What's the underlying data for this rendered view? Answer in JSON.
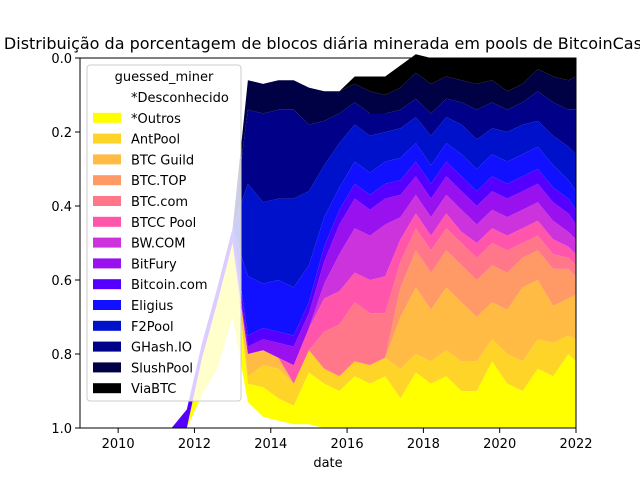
{
  "chart_data": {
    "type": "area",
    "title": "Distribuição da porcentagem de blocos diária minerada em pools de BitcoinCash",
    "xlabel": "date",
    "ylabel": "",
    "xlim": [
      2009.0,
      2022.0
    ],
    "ylim": [
      1.0,
      0.0
    ],
    "y_inverted": true,
    "grid": false,
    "x_ticks": [
      "2010",
      "2012",
      "2014",
      "2016",
      "2018",
      "2020",
      "2022"
    ],
    "y_ticks": [
      "0.0",
      "0.2",
      "0.4",
      "0.6",
      "0.8",
      "1.0"
    ],
    "legend": {
      "title": "guessed_miner",
      "placement": "upper-left"
    },
    "x": [
      2009.0,
      2011.4,
      2011.8,
      2012.2,
      2012.6,
      2013.0,
      2013.4,
      2013.8,
      2014.2,
      2014.6,
      2015.0,
      2015.4,
      2015.8,
      2016.2,
      2016.6,
      2017.0,
      2017.4,
      2017.8,
      2018.2,
      2018.6,
      2019.0,
      2019.4,
      2019.8,
      2020.2,
      2020.6,
      2021.0,
      2021.4,
      2021.8,
      2022.0
    ],
    "series": [
      {
        "name": "*Desconhecido",
        "color": "#ffffff",
        "values": [
          0,
          0,
          0,
          0.09,
          0.16,
          0.3,
          0.07,
          0.03,
          0.02,
          0.01,
          0.01,
          0,
          0,
          0,
          0,
          0,
          0,
          0,
          0,
          0,
          0,
          0,
          0,
          0,
          0,
          0,
          0,
          0,
          0
        ]
      },
      {
        "name": "*Outros",
        "color": "#ffff00",
        "values": [
          0,
          0,
          0,
          0.1,
          0.18,
          0.2,
          0.05,
          0.08,
          0.06,
          0.05,
          0.14,
          0.12,
          0.1,
          0.14,
          0.12,
          0.14,
          0.08,
          0.15,
          0.12,
          0.14,
          0.1,
          0.1,
          0.18,
          0.12,
          0.1,
          0.16,
          0.14,
          0.2,
          0.18
        ]
      },
      {
        "name": "AntPool",
        "color": "#ffd429",
        "values": [
          0,
          0,
          0,
          0,
          0,
          0,
          0.02,
          0.06,
          0.08,
          0.06,
          0.06,
          0.04,
          0.04,
          0.04,
          0.05,
          0.05,
          0.08,
          0.05,
          0.06,
          0.07,
          0.08,
          0.08,
          0.06,
          0.08,
          0.08,
          0.08,
          0.09,
          0.05,
          0.06
        ]
      },
      {
        "name": "BTC Guild",
        "color": "#ffbb44",
        "values": [
          0,
          0,
          0,
          0,
          0,
          0,
          0.06,
          0.04,
          0.03,
          0,
          0,
          0,
          0,
          0,
          0,
          0,
          0.14,
          0.18,
          0.14,
          0.17,
          0.16,
          0.12,
          0.1,
          0.12,
          0.2,
          0.16,
          0.1,
          0.1,
          0.12
        ]
      },
      {
        "name": "BTC.TOP",
        "color": "#ff9966",
        "values": [
          0,
          0,
          0,
          0,
          0,
          0,
          0,
          0,
          0,
          0,
          0,
          0,
          0,
          0,
          0,
          0,
          0.08,
          0.1,
          0.1,
          0.1,
          0.1,
          0.1,
          0.1,
          0.1,
          0.08,
          0.08,
          0.1,
          0.08,
          0.05
        ]
      },
      {
        "name": "BTC.com",
        "color": "#ff7788",
        "values": [
          0,
          0,
          0,
          0,
          0,
          0,
          0,
          0,
          0,
          0,
          0,
          0.1,
          0.14,
          0.16,
          0.14,
          0.12,
          0.07,
          0.06,
          0.06,
          0.06,
          0.06,
          0.06,
          0.06,
          0.06,
          0.04,
          0.04,
          0.04,
          0.03,
          0.03
        ]
      },
      {
        "name": "BTCC Pool",
        "color": "#ff55aa",
        "values": [
          0,
          0,
          0,
          0,
          0,
          0,
          0,
          0,
          0,
          0.05,
          0.06,
          0.09,
          0.09,
          0.08,
          0.09,
          0.1,
          0.06,
          0.04,
          0.04,
          0.04,
          0.03,
          0.04,
          0.04,
          0.04,
          0.04,
          0.04,
          0.04,
          0.03,
          0.03
        ]
      },
      {
        "name": "BW.COM",
        "color": "#cc33dd",
        "values": [
          0,
          0,
          0,
          0,
          0,
          0,
          0,
          0,
          0,
          0,
          0,
          0.04,
          0.1,
          0.12,
          0.12,
          0.14,
          0.06,
          0.05,
          0.05,
          0.05,
          0.06,
          0.05,
          0.05,
          0.05,
          0.05,
          0.05,
          0.05,
          0.04,
          0.04
        ]
      },
      {
        "name": "BitFury",
        "color": "#9911ee",
        "values": [
          0,
          0,
          0,
          0,
          0,
          0,
          0.02,
          0.03,
          0.04,
          0.05,
          0.04,
          0.06,
          0.08,
          0.08,
          0.07,
          0.07,
          0.06,
          0.05,
          0.05,
          0.05,
          0.05,
          0.05,
          0.05,
          0.05,
          0.05,
          0.05,
          0.05,
          0.05,
          0.04
        ]
      },
      {
        "name": "Bitcoin.com",
        "color": "#5500ff",
        "values": [
          0,
          0,
          0.05,
          0.04,
          0.04,
          0.04,
          0.03,
          0.03,
          0.03,
          0.03,
          0.03,
          0.04,
          0.04,
          0.04,
          0.04,
          0.04,
          0.04,
          0.04,
          0.04,
          0.04,
          0.04,
          0.04,
          0.04,
          0.04,
          0.04,
          0.04,
          0.04,
          0.04,
          0.04
        ]
      },
      {
        "name": "Eligius",
        "color": "#1111ff",
        "values": [
          0,
          0,
          0,
          0,
          0,
          0,
          0.16,
          0.12,
          0.14,
          0.13,
          0.1,
          0.08,
          0.06,
          0.06,
          0.06,
          0.06,
          0.06,
          0.05,
          0.05,
          0.05,
          0.06,
          0.06,
          0.06,
          0.06,
          0.06,
          0.06,
          0.06,
          0.05,
          0.05
        ]
      },
      {
        "name": "F2Pool",
        "color": "#0011cc",
        "values": [
          0,
          0,
          0,
          0,
          0,
          0,
          0.25,
          0.22,
          0.22,
          0.24,
          0.2,
          0.14,
          0.12,
          0.1,
          0.1,
          0.08,
          0.08,
          0.07,
          0.08,
          0.07,
          0.08,
          0.08,
          0.07,
          0.08,
          0.08,
          0.07,
          0.08,
          0.09,
          0.1
        ]
      },
      {
        "name": "GHash.IO",
        "color": "#000088",
        "values": [
          0,
          0,
          0,
          0,
          0,
          0,
          0.2,
          0.24,
          0.24,
          0.24,
          0.18,
          0.12,
          0.08,
          0.06,
          0.06,
          0.05,
          0.05,
          0.05,
          0.06,
          0.05,
          0.06,
          0.08,
          0.07,
          0.06,
          0.06,
          0.08,
          0.09,
          0.1,
          0.12
        ]
      },
      {
        "name": "SlushPool",
        "color": "#000044",
        "values": [
          0,
          0,
          0,
          0,
          0,
          0,
          0.08,
          0.08,
          0.08,
          0.08,
          0.1,
          0.08,
          0.06,
          0.05,
          0.06,
          0.05,
          0.06,
          0.07,
          0.08,
          0.06,
          0.06,
          0.07,
          0.06,
          0.05,
          0.05,
          0.06,
          0.07,
          0.08,
          0.09
        ]
      },
      {
        "name": "ViaBTC",
        "color": "#000000",
        "values": [
          0,
          0,
          0,
          0,
          0,
          0,
          0,
          0,
          0,
          0,
          0,
          0,
          0,
          0.02,
          0.04,
          0.05,
          0.06,
          0.05,
          0.07,
          0.05,
          0.06,
          0.07,
          0.06,
          0.09,
          0.07,
          0.03,
          0.05,
          0.06,
          0.05
        ]
      }
    ]
  }
}
